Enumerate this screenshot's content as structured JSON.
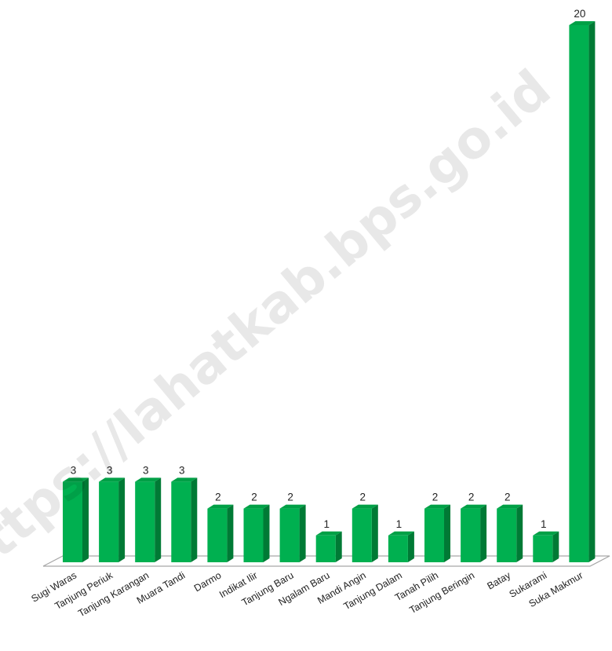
{
  "watermark": "https://lahatkab.bps.go.id",
  "colors": {
    "bar_front": "#00b050",
    "bar_top": "#00a046",
    "bar_side": "#007a35",
    "floor": "#a6a6a6"
  },
  "chart_data": {
    "type": "bar",
    "style": "3d-column",
    "categories": [
      "Sugi Waras",
      "Tanjung Periuk",
      "Tanjung Karangan",
      "Muara Tandi",
      "Darmo",
      "Indikat Ilir",
      "Tanjung Baru",
      "Ngalam Baru",
      "Mandi Angin",
      "Tanjung Dalam",
      "Tanah Pilih",
      "Tanjung Beringin",
      "Batay",
      "Sukarami",
      "Suka Makmur"
    ],
    "values": [
      3,
      3,
      3,
      3,
      2,
      2,
      2,
      1,
      2,
      1,
      2,
      2,
      2,
      1,
      20
    ],
    "ylim": [
      0,
      20
    ],
    "grid": false,
    "legend": "none",
    "data_labels": true
  }
}
